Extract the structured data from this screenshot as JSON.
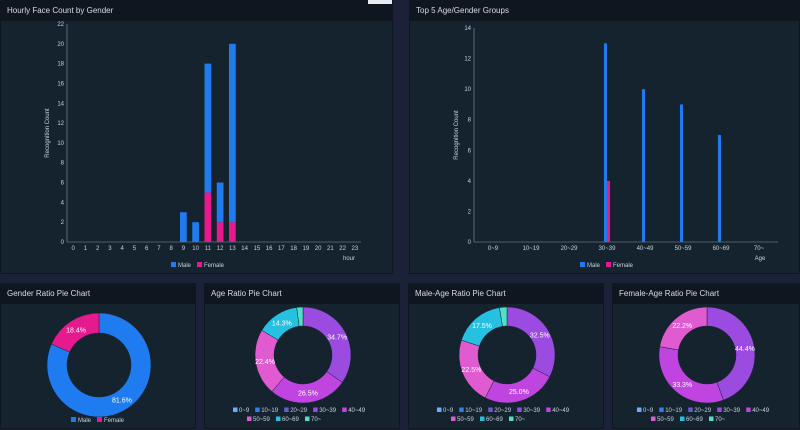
{
  "colors": {
    "male": "#1f7cf0",
    "female": "#e6198f",
    "age_0_9": "#66b0ff",
    "age_10_19": "#2d7df0",
    "age_20_29": "#6a5acd",
    "age_30_39": "#9b4be0",
    "age_40_49": "#c045e0",
    "age_50_59": "#e05ad0",
    "age_60_69": "#26c0e0",
    "age_70": "#4fe0c8"
  },
  "panels": {
    "hourly": {
      "title": "Hourly Face Count by Gender",
      "legend": [
        "Male",
        "Female"
      ]
    },
    "top5": {
      "title": "Top 5 Age/Gender Groups",
      "legend": [
        "Male",
        "Female"
      ]
    },
    "gender_pie": {
      "title": "Gender Ratio Pie Chart",
      "legend": [
        "Male",
        "Female"
      ]
    },
    "age_pie": {
      "title": "Age Ratio Pie Chart"
    },
    "male_age_pie": {
      "title": "Male-Age Ratio Pie Chart"
    },
    "female_age_pie": {
      "title": "Female-Age Ratio Pie Chart"
    }
  },
  "age_legend": [
    "0~9",
    "10~19",
    "20~29",
    "30~39",
    "40~49",
    "50~59",
    "60~69",
    "70~"
  ],
  "chart_data": [
    {
      "type": "bar",
      "title": "Hourly Face Count by Gender",
      "xlabel": "hour",
      "ylabel": "Recognition Count",
      "ylim": [
        0,
        22
      ],
      "yticks": [
        0,
        2,
        4,
        6,
        8,
        10,
        12,
        14,
        16,
        18,
        20,
        22
      ],
      "categories": [
        "0",
        "1",
        "2",
        "3",
        "4",
        "5",
        "6",
        "7",
        "8",
        "9",
        "10",
        "11",
        "12",
        "13",
        "14",
        "15",
        "16",
        "17",
        "18",
        "19",
        "20",
        "21",
        "22",
        "23"
      ],
      "stacked": true,
      "series": [
        {
          "name": "Male",
          "values": [
            0,
            0,
            0,
            0,
            0,
            0,
            0,
            0,
            0,
            3,
            2,
            13,
            4,
            18,
            0,
            0,
            0,
            0,
            0,
            0,
            0,
            0,
            0,
            0
          ]
        },
        {
          "name": "Female",
          "values": [
            0,
            0,
            0,
            0,
            0,
            0,
            0,
            0,
            0,
            0,
            0,
            5,
            2,
            2,
            0,
            0,
            0,
            0,
            0,
            0,
            0,
            0,
            0,
            0
          ]
        }
      ],
      "legend_position": "bottom"
    },
    {
      "type": "bar",
      "title": "Top 5 Age/Gender Groups",
      "xlabel": "Age",
      "ylabel": "Recognition Count",
      "ylim": [
        0,
        14
      ],
      "yticks": [
        0,
        2,
        4,
        6,
        8,
        10,
        12,
        14
      ],
      "categories": [
        "0~9",
        "10~19",
        "20~29",
        "30~39",
        "40~49",
        "50~59",
        "60~69",
        "70~"
      ],
      "series": [
        {
          "name": "Male",
          "values": [
            0,
            0,
            0,
            13,
            10,
            9,
            7,
            0
          ]
        },
        {
          "name": "Female",
          "values": [
            0,
            0,
            0,
            4,
            0,
            0,
            0,
            0
          ]
        }
      ],
      "legend_position": "bottom"
    },
    {
      "type": "pie",
      "title": "Gender Ratio Pie Chart",
      "labels": [
        "Male",
        "Female"
      ],
      "values": [
        81.6,
        18.4
      ],
      "labels_shown": [
        "81.6%",
        "18.4%"
      ],
      "legend_position": "bottom"
    },
    {
      "type": "pie",
      "title": "Age Ratio Pie Chart",
      "labels": [
        "0~9",
        "10~19",
        "20~29",
        "30~39",
        "40~49",
        "50~59",
        "60~69",
        "70~"
      ],
      "values": [
        0,
        0,
        0,
        34.7,
        26.5,
        22.4,
        14.3,
        2.1
      ],
      "labels_shown": [
        "",
        "",
        "",
        "34.7%",
        "26.5%",
        "22.4%",
        "14.3%",
        ""
      ],
      "legend_position": "bottom"
    },
    {
      "type": "pie",
      "title": "Male-Age Ratio Pie Chart",
      "labels": [
        "0~9",
        "10~19",
        "20~29",
        "30~39",
        "40~49",
        "50~59",
        "60~69",
        "70~"
      ],
      "values": [
        0,
        0,
        0,
        32.5,
        25.0,
        22.5,
        17.5,
        2.5
      ],
      "labels_shown": [
        "",
        "",
        "",
        "32.5%",
        "25.0%",
        "22.5%",
        "17.5%",
        ""
      ],
      "legend_position": "bottom"
    },
    {
      "type": "pie",
      "title": "Female-Age Ratio Pie Chart",
      "labels": [
        "0~9",
        "10~19",
        "20~29",
        "30~39",
        "40~49",
        "50~59",
        "60~69",
        "70~"
      ],
      "values": [
        0,
        0,
        0,
        44.4,
        33.3,
        22.2,
        0,
        0
      ],
      "labels_shown": [
        "",
        "",
        "",
        "44.4%",
        "33.3%",
        "22.2%",
        "",
        ""
      ],
      "legend_position": "bottom"
    }
  ]
}
